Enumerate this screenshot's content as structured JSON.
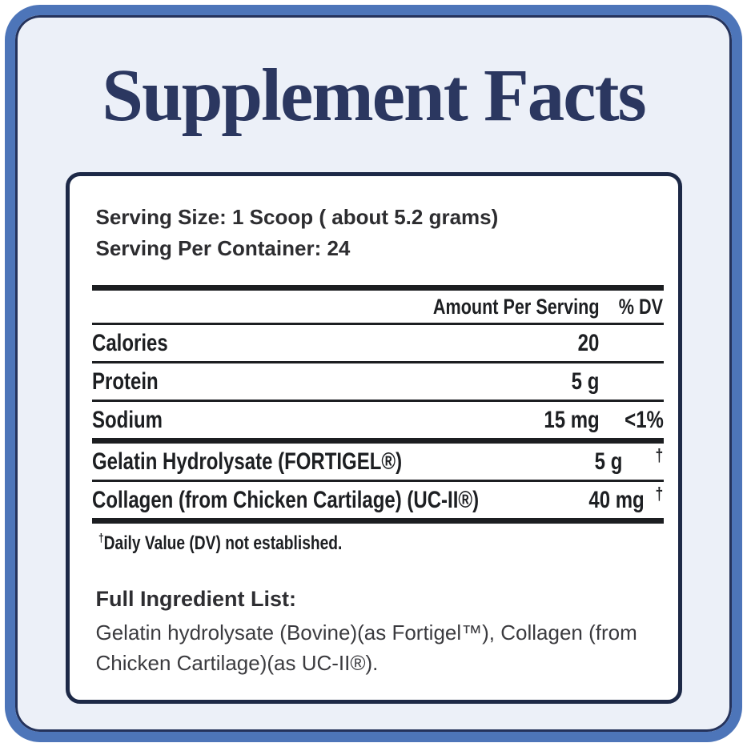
{
  "page": {
    "title": "Supplement Facts"
  },
  "label": {
    "serving_size": "Serving Size: 1 Scoop ( about 5.2 grams)",
    "servings_per_container": "Serving Per Container: 24",
    "table": {
      "header": {
        "amount": "Amount Per Serving",
        "dv": "% DV"
      },
      "rows": [
        {
          "name": "Calories",
          "amount": "20",
          "dv": ""
        },
        {
          "name": "Protein",
          "amount": "5 g",
          "dv": ""
        },
        {
          "name": "Sodium",
          "amount": "15 mg",
          "dv": "<1%"
        },
        {
          "name": "Gelatin Hydrolysate (FORTIGEL®)",
          "amount": "5 g",
          "dv": "†"
        },
        {
          "name": "Collagen (from Chicken Cartilage) (UC-II®)",
          "amount": "40 mg",
          "dv": "†"
        }
      ],
      "footnote_symbol": "†",
      "footnote": "Daily Value (DV) not established."
    },
    "ingredients": {
      "heading": "Full Ingredient List:",
      "text": "Gelatin hydrolysate (Bovine)(as Fortigel™), Collagen (from Chicken Cartilage)(as UC-II®)."
    }
  },
  "colors": {
    "frame_blue": "#4d75b9",
    "frame_inner_navy": "#24325b",
    "page_background": "#ecf0f8",
    "panel_background": "#ffffff",
    "panel_border_navy": "#1d2947",
    "title_navy": "#2b3760",
    "table_text": "#1d1f22"
  }
}
